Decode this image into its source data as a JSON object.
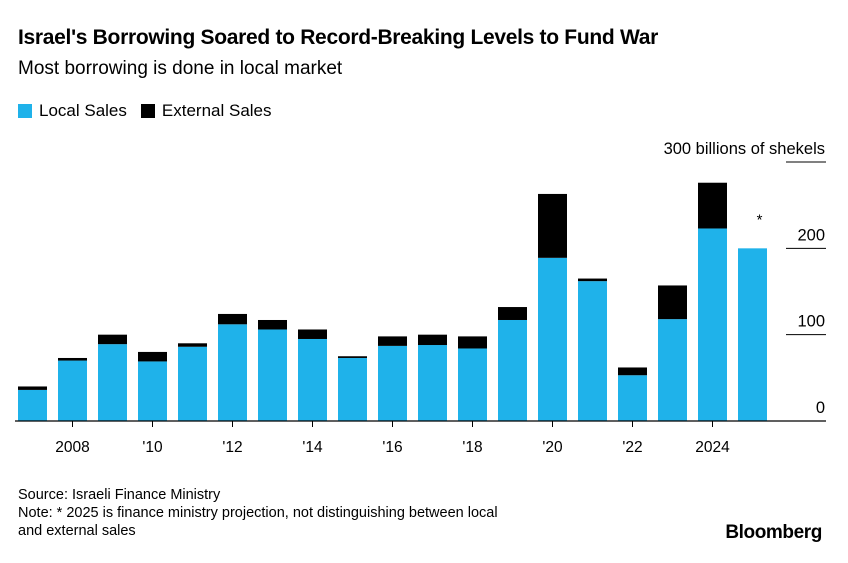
{
  "title": "Israel's Borrowing Soared to Record-Breaking Levels to Fund War",
  "subtitle": "Most borrowing is done in local market",
  "legend": [
    {
      "label": "Local Sales",
      "color": "#1fb2ea"
    },
    {
      "label": "External Sales",
      "color": "#000000"
    }
  ],
  "footer": {
    "source": "Source: Israeli Finance Ministry",
    "note_line1": "Note: * 2025 is finance ministry projection, not distinguishing between local",
    "note_line2": "and external sales"
  },
  "brand": "Bloomberg",
  "chart_data": {
    "type": "bar",
    "stacked": true,
    "years": [
      2007,
      2008,
      2009,
      2010,
      2011,
      2012,
      2013,
      2014,
      2015,
      2016,
      2017,
      2018,
      2019,
      2020,
      2021,
      2022,
      2023,
      2024,
      2025
    ],
    "series": [
      {
        "name": "Local Sales",
        "color": "#1fb2ea",
        "values": [
          36,
          70,
          89,
          69,
          86,
          112,
          106,
          95,
          73,
          87,
          88,
          84,
          117,
          189,
          162,
          53,
          118,
          223,
          200
        ]
      },
      {
        "name": "External Sales",
        "color": "#000000",
        "values": [
          4,
          3,
          11,
          11,
          4,
          12,
          11,
          11,
          2,
          11,
          12,
          14,
          15,
          74,
          3,
          9,
          39,
          53,
          0
        ]
      }
    ],
    "annotations": [
      {
        "year": 2025,
        "text": "*"
      }
    ],
    "xticks": [
      {
        "year": 2008,
        "label": "2008"
      },
      {
        "year": 2010,
        "label": "'10"
      },
      {
        "year": 2012,
        "label": "'12"
      },
      {
        "year": 2014,
        "label": "'14"
      },
      {
        "year": 2016,
        "label": "'16"
      },
      {
        "year": 2018,
        "label": "'18"
      },
      {
        "year": 2020,
        "label": "'20"
      },
      {
        "year": 2022,
        "label": "'22"
      },
      {
        "year": 2024,
        "label": "2024"
      }
    ],
    "yticks": [
      {
        "value": 0,
        "label": "0"
      },
      {
        "value": 100,
        "label": "100"
      },
      {
        "value": 200,
        "label": "200"
      },
      {
        "value": 300,
        "label": "300 billions of shekels"
      }
    ],
    "ylim": [
      0,
      300
    ],
    "grid": false,
    "legend_position": "top-left"
  }
}
